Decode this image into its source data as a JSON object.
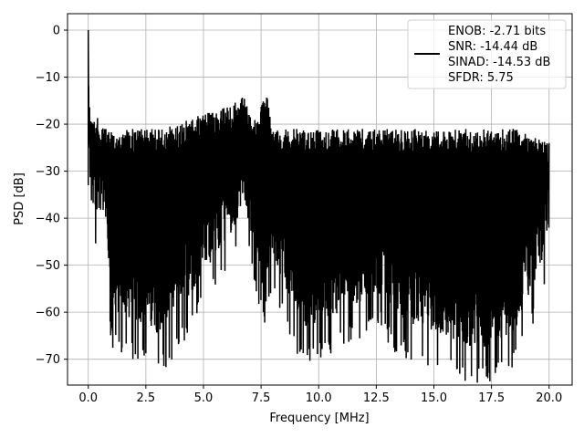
{
  "chart_data": {
    "type": "line",
    "title": "",
    "xlabel": "Frequency [MHz]",
    "ylabel": "PSD [dB]",
    "xlim": [
      -0.9,
      21.0
    ],
    "ylim": [
      -75.5,
      3.5
    ],
    "xticks": [
      0.0,
      2.5,
      5.0,
      7.5,
      10.0,
      12.5,
      15.0,
      17.5,
      20.0
    ],
    "xtick_labels": [
      "0.0",
      "2.5",
      "5.0",
      "7.5",
      "10.0",
      "12.5",
      "15.0",
      "17.5",
      "20.0"
    ],
    "yticks": [
      0,
      -10,
      -20,
      -30,
      -40,
      -50,
      -60,
      -70
    ],
    "ytick_labels": [
      "0",
      "−10",
      "−20",
      "−30",
      "−40",
      "−50",
      "−60",
      "−70"
    ],
    "grid": true,
    "legend_position": "top-right",
    "line_color": "#000000",
    "legend": [
      "ENOB: -2.71 bits",
      "SNR: -14.44 dB",
      "SINAD: -14.53 dB",
      "SFDR: 5.75"
    ],
    "series": [
      {
        "x": [
          0.0,
          0.02,
          0.05,
          0.1,
          0.2,
          0.5,
          0.7,
          0.95,
          1.05,
          3.25,
          6.6,
          6.75,
          7.0,
          7.15,
          7.6,
          7.75,
          7.9,
          8.0,
          9.2,
          12.7,
          13.3,
          16.95,
          18.55,
          20.0
        ],
        "y_upper": [
          0.0,
          -8,
          -15,
          -18,
          -18,
          -19,
          -21,
          -21,
          -21,
          -21,
          -15,
          -13,
          -18,
          -20,
          -15,
          -13,
          -18,
          -21,
          -21,
          -21,
          -21,
          -21,
          -21,
          -24
        ],
        "y_lower": [
          -33,
          -35,
          -38,
          -41,
          -43,
          -42,
          -44,
          -62,
          -64,
          -69,
          -44,
          -40,
          -46,
          -48,
          -60,
          -56,
          -52,
          -52,
          -68,
          -60,
          -65,
          -72,
          -68,
          -50
        ]
      }
    ]
  }
}
